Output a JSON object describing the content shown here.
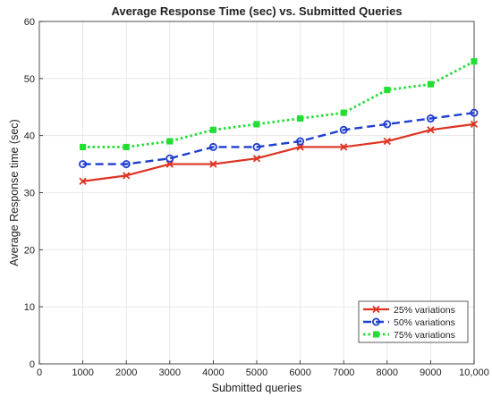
{
  "chart_data": {
    "type": "line",
    "title": "Average Response Time (sec) vs. Submitted Queries",
    "xlabel": "Submitted queries",
    "ylabel": "Average Response time (sec)",
    "x": [
      1000,
      2000,
      3000,
      4000,
      5000,
      6000,
      7000,
      8000,
      9000,
      10000
    ],
    "xlim": [
      0,
      10000
    ],
    "ylim": [
      0,
      60
    ],
    "xticks": [
      0,
      1000,
      2000,
      3000,
      4000,
      5000,
      6000,
      7000,
      8000,
      9000,
      10000
    ],
    "xtick_labels": [
      "0",
      "1000",
      "2000",
      "3000",
      "4000",
      "5000",
      "6000",
      "7000",
      "8000",
      "9000",
      "10,000"
    ],
    "yticks": [
      0,
      10,
      20,
      30,
      40,
      50,
      60
    ],
    "ytick_labels": [
      "0",
      "10",
      "20",
      "30",
      "40",
      "50",
      "60"
    ],
    "grid": true,
    "legend_position": "bottom-right",
    "series": [
      {
        "name": "25% variations",
        "values": [
          32,
          33,
          35,
          35,
          36,
          38,
          38,
          39,
          41,
          42
        ],
        "color": "#dd3322",
        "line_style": "solid",
        "marker": "x"
      },
      {
        "name": "50% variations",
        "values": [
          35,
          35,
          36,
          38,
          38,
          39,
          41,
          42,
          43,
          44
        ],
        "color": "#1f3fd0",
        "line_style": "dashed",
        "marker": "circle"
      },
      {
        "name": "75% variations",
        "values": [
          38,
          38,
          39,
          41,
          42,
          43,
          44,
          48,
          49,
          53
        ],
        "color": "#22dd33",
        "line_style": "dotted",
        "marker": "square"
      }
    ]
  }
}
